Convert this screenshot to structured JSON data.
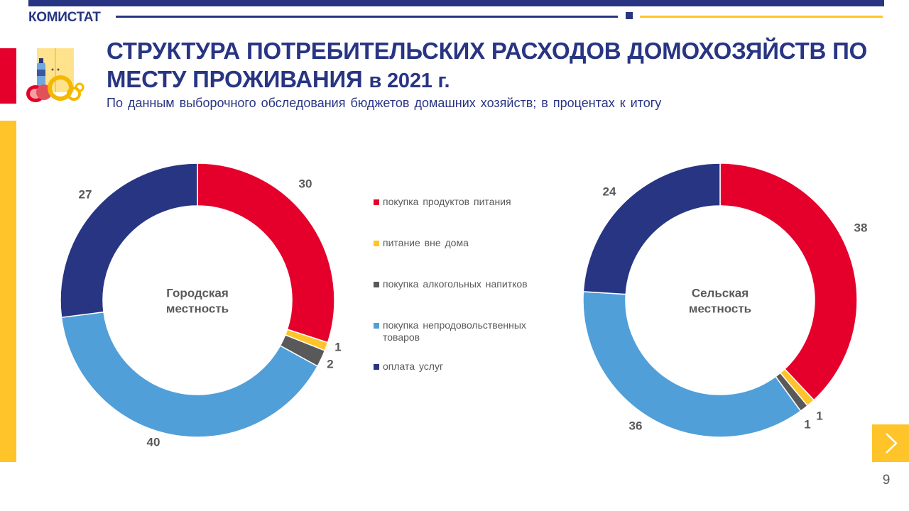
{
  "header": {
    "brand": "КОМИСТАТ",
    "title_main": "СТРУКТУРА ПОТРЕБИТЕЛЬСКИХ РАСХОДОВ ДОМОХОЗЯЙСТВ ПО МЕСТУ ПРОЖИВАНИЯ",
    "title_year": "в 2021 г.",
    "subtitle": "По данным выборочного обследования бюджетов домашних хозяйств; в процентах к итогу"
  },
  "colors": {
    "navy": "#283583",
    "red": "#e4002b",
    "yellow": "#ffc429",
    "gray": "#595959",
    "blue": "#519fd8"
  },
  "icons": {
    "logo": "groceries-icon",
    "next": "chevron-right-icon"
  },
  "chart_data": {
    "type": "donut",
    "legend_position": "center",
    "legend": [
      "покупка продуктов питания",
      "питание вне дома",
      "покупка алкогольных напитков",
      "покупка непродовольственных товаров",
      "оплата услуг"
    ],
    "series_colors": [
      "#e4002b",
      "#ffc429",
      "#595959",
      "#519fd8",
      "#283583"
    ],
    "charts": [
      {
        "name_line1": "Городская",
        "name_line2": "местность",
        "values": [
          30,
          1,
          2,
          40,
          27
        ]
      },
      {
        "name_line1": "Сельская",
        "name_line2": "местность",
        "values": [
          38,
          1,
          1,
          36,
          24
        ]
      }
    ]
  },
  "footer": {
    "page_number": "9"
  }
}
